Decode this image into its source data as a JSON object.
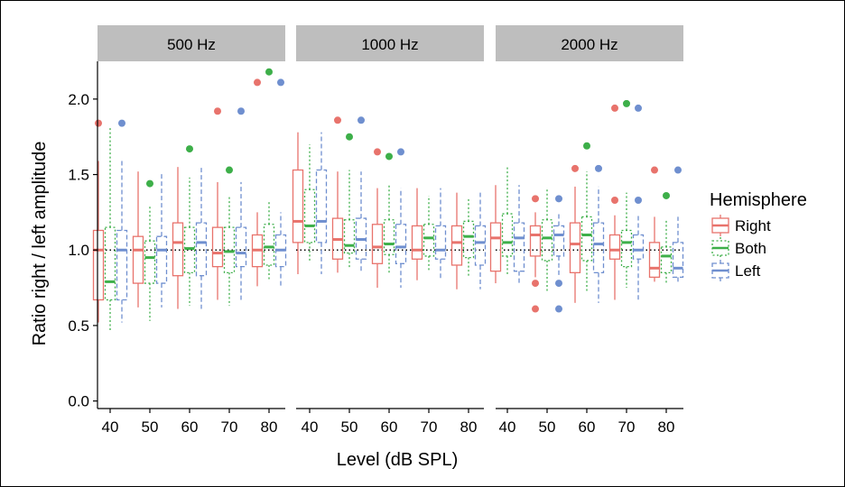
{
  "chart_data": {
    "type": "boxplot",
    "xlabel": "Level (dB SPL)",
    "ylabel": "Ratio right / left amplitude",
    "ylim": [
      -0.05,
      2.25
    ],
    "yticks": [
      "0.0",
      "0.5",
      "1.0",
      "1.5",
      "2.0"
    ],
    "ytick_values": [
      0.0,
      0.5,
      1.0,
      1.5,
      2.0
    ],
    "categories": [
      "40",
      "50",
      "60",
      "70",
      "80"
    ],
    "reference_line": 1.0,
    "legend": {
      "title": "Hemisphere",
      "position": "right",
      "entries": [
        {
          "label": "Right",
          "color": "#E8736C",
          "dash": "solid"
        },
        {
          "label": "Both",
          "color": "#3DAF49",
          "dash": "dotted"
        },
        {
          "label": "Left",
          "color": "#6F8FCF",
          "dash": "dashed"
        }
      ]
    },
    "panels": [
      {
        "title": "500 Hz",
        "boxes": {
          "Right": [
            {
              "lw": 0.52,
              "q1": 0.67,
              "med": 1.0,
              "q3": 1.13,
              "uw": 1.59,
              "out": [
                1.84
              ]
            },
            {
              "lw": 0.62,
              "q1": 0.78,
              "med": 1.0,
              "q3": 1.09,
              "uw": 1.52,
              "out": []
            },
            {
              "lw": 0.61,
              "q1": 0.83,
              "med": 1.05,
              "q3": 1.18,
              "uw": 1.55,
              "out": []
            },
            {
              "lw": 0.67,
              "q1": 0.89,
              "med": 0.98,
              "q3": 1.15,
              "uw": 1.45,
              "out": [
                1.92
              ]
            },
            {
              "lw": 0.76,
              "q1": 0.89,
              "med": 1.0,
              "q3": 1.1,
              "uw": 1.25,
              "out": [
                2.11
              ]
            }
          ],
          "Both": [
            {
              "lw": 0.47,
              "q1": 0.67,
              "med": 0.79,
              "q3": 1.15,
              "uw": 1.81,
              "out": []
            },
            {
              "lw": 0.53,
              "q1": 0.78,
              "med": 0.95,
              "q3": 1.06,
              "uw": 1.29,
              "out": [
                1.44
              ]
            },
            {
              "lw": 0.63,
              "q1": 0.85,
              "med": 1.01,
              "q3": 1.15,
              "uw": 1.48,
              "out": [
                1.67
              ]
            },
            {
              "lw": 0.63,
              "q1": 0.85,
              "med": 0.99,
              "q3": 1.15,
              "uw": 1.35,
              "out": [
                1.53
              ]
            },
            {
              "lw": 0.8,
              "q1": 0.9,
              "med": 1.02,
              "q3": 1.17,
              "uw": 1.33,
              "out": [
                2.18
              ]
            }
          ],
          "Left": [
            {
              "lw": 0.52,
              "q1": 0.67,
              "med": 1.0,
              "q3": 1.13,
              "uw": 1.59,
              "out": [
                1.84
              ]
            },
            {
              "lw": 0.62,
              "q1": 0.78,
              "med": 1.0,
              "q3": 1.09,
              "uw": 1.52,
              "out": []
            },
            {
              "lw": 0.61,
              "q1": 0.83,
              "med": 1.05,
              "q3": 1.18,
              "uw": 1.55,
              "out": []
            },
            {
              "lw": 0.67,
              "q1": 0.89,
              "med": 0.98,
              "q3": 1.15,
              "uw": 1.45,
              "out": [
                1.92
              ]
            },
            {
              "lw": 0.76,
              "q1": 0.89,
              "med": 1.0,
              "q3": 1.1,
              "uw": 1.25,
              "out": [
                2.11
              ]
            }
          ]
        }
      },
      {
        "title": "1000 Hz",
        "boxes": {
          "Right": [
            {
              "lw": 0.84,
              "q1": 1.05,
              "med": 1.19,
              "q3": 1.53,
              "uw": 1.78,
              "out": []
            },
            {
              "lw": 0.85,
              "q1": 0.94,
              "med": 1.07,
              "q3": 1.21,
              "uw": 1.52,
              "out": [
                1.86
              ]
            },
            {
              "lw": 0.75,
              "q1": 0.91,
              "med": 1.02,
              "q3": 1.17,
              "uw": 1.41,
              "out": [
                1.65
              ]
            },
            {
              "lw": 0.8,
              "q1": 0.94,
              "med": 1.0,
              "q3": 1.16,
              "uw": 1.41,
              "out": []
            },
            {
              "lw": 0.74,
              "q1": 0.9,
              "med": 1.05,
              "q3": 1.16,
              "uw": 1.38,
              "out": []
            }
          ],
          "Both": [
            {
              "lw": 0.93,
              "q1": 1.05,
              "med": 1.16,
              "q3": 1.4,
              "uw": 1.7,
              "out": []
            },
            {
              "lw": 0.88,
              "q1": 0.98,
              "med": 1.03,
              "q3": 1.2,
              "uw": 1.53,
              "out": [
                1.75
              ]
            },
            {
              "lw": 0.85,
              "q1": 0.97,
              "med": 1.04,
              "q3": 1.2,
              "uw": 1.44,
              "out": [
                1.62
              ]
            },
            {
              "lw": 0.86,
              "q1": 0.96,
              "med": 1.08,
              "q3": 1.17,
              "uw": 1.36,
              "out": []
            },
            {
              "lw": 0.83,
              "q1": 0.95,
              "med": 1.09,
              "q3": 1.19,
              "uw": 1.35,
              "out": []
            }
          ],
          "Left": [
            {
              "lw": 0.84,
              "q1": 1.05,
              "med": 1.19,
              "q3": 1.53,
              "uw": 1.78,
              "out": []
            },
            {
              "lw": 0.85,
              "q1": 0.94,
              "med": 1.07,
              "q3": 1.21,
              "uw": 1.52,
              "out": [
                1.86
              ]
            },
            {
              "lw": 0.75,
              "q1": 0.91,
              "med": 1.02,
              "q3": 1.17,
              "uw": 1.41,
              "out": [
                1.65
              ]
            },
            {
              "lw": 0.8,
              "q1": 0.94,
              "med": 1.0,
              "q3": 1.16,
              "uw": 1.41,
              "out": []
            },
            {
              "lw": 0.74,
              "q1": 0.9,
              "med": 1.05,
              "q3": 1.16,
              "uw": 1.38,
              "out": []
            }
          ]
        }
      },
      {
        "title": "2000 Hz",
        "boxes": {
          "Right": [
            {
              "lw": 0.78,
              "q1": 0.86,
              "med": 1.08,
              "q3": 1.18,
              "uw": 1.43,
              "out": []
            },
            {
              "lw": 0.82,
              "q1": 0.96,
              "med": 1.1,
              "q3": 1.16,
              "uw": 1.25,
              "out": [
                1.34,
                0.78,
                0.61
              ]
            },
            {
              "lw": 0.65,
              "q1": 0.85,
              "med": 1.04,
              "q3": 1.18,
              "uw": 1.42,
              "out": [
                1.54
              ]
            },
            {
              "lw": 0.67,
              "q1": 0.94,
              "med": 1.0,
              "q3": 1.1,
              "uw": 1.23,
              "out": [
                1.94,
                1.33
              ]
            },
            {
              "lw": 0.79,
              "q1": 0.82,
              "med": 0.88,
              "q3": 1.05,
              "uw": 1.22,
              "out": [
                1.53
              ]
            }
          ],
          "Both": [
            {
              "lw": 0.84,
              "q1": 0.96,
              "med": 1.05,
              "q3": 1.24,
              "uw": 1.55,
              "out": []
            },
            {
              "lw": 0.72,
              "q1": 0.93,
              "med": 1.08,
              "q3": 1.2,
              "uw": 1.41,
              "out": []
            },
            {
              "lw": 0.72,
              "q1": 0.93,
              "med": 1.1,
              "q3": 1.22,
              "uw": 1.52,
              "out": [
                1.69
              ]
            },
            {
              "lw": 0.75,
              "q1": 0.89,
              "med": 1.05,
              "q3": 1.13,
              "uw": 1.38,
              "out": [
                1.97
              ]
            },
            {
              "lw": 0.78,
              "q1": 0.85,
              "med": 0.96,
              "q3": 1.02,
              "uw": 1.2,
              "out": [
                1.36
              ]
            }
          ],
          "Left": [
            {
              "lw": 0.78,
              "q1": 0.86,
              "med": 1.08,
              "q3": 1.18,
              "uw": 1.43,
              "out": []
            },
            {
              "lw": 0.82,
              "q1": 0.96,
              "med": 1.1,
              "q3": 1.16,
              "uw": 1.25,
              "out": [
                1.34,
                0.78,
                0.61
              ]
            },
            {
              "lw": 0.65,
              "q1": 0.85,
              "med": 1.04,
              "q3": 1.18,
              "uw": 1.42,
              "out": [
                1.54
              ]
            },
            {
              "lw": 0.67,
              "q1": 0.94,
              "med": 1.0,
              "q3": 1.1,
              "uw": 1.23,
              "out": [
                1.94,
                1.33
              ]
            },
            {
              "lw": 0.79,
              "q1": 0.82,
              "med": 0.88,
              "q3": 1.05,
              "uw": 1.22,
              "out": [
                1.53
              ]
            }
          ]
        }
      }
    ]
  }
}
